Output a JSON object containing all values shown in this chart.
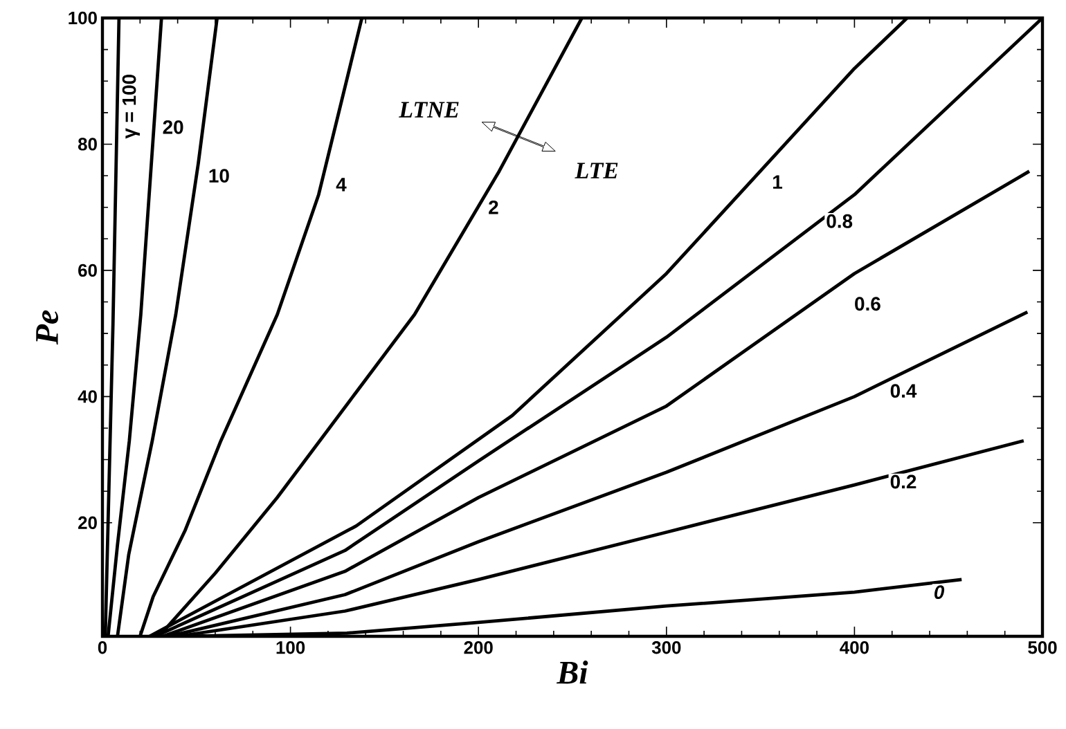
{
  "chart_data": {
    "type": "line",
    "xlabel": "*Bi*",
    "ylabel": "*Pe*",
    "xlim": [
      0,
      500
    ],
    "ylim": [
      2,
      100
    ],
    "xticks": [
      0,
      100,
      200,
      300,
      400,
      500
    ],
    "yticks": [
      20,
      40,
      60,
      80,
      100
    ],
    "grid": false,
    "marker": "none",
    "line_style": "solid",
    "series": [
      {
        "color": "#000000",
        "x": [
          1.5,
          3.2,
          5.6,
          8.8
        ],
        "values": [
          2,
          22.5,
          51.5,
          100
        ]
      },
      {
        "color": "#000000",
        "x": [
          3,
          8,
          14.3,
          20.4,
          26.5,
          31.4
        ],
        "values": [
          2,
          16.5,
          33,
          53,
          79,
          100
        ]
      },
      {
        "color": "#000000",
        "x": [
          8,
          14,
          26.5,
          39,
          51,
          61
        ],
        "values": [
          2,
          15,
          33,
          53,
          77,
          100
        ]
      },
      {
        "color": "#000000",
        "x": [
          20,
          27,
          44,
          63,
          93,
          115,
          138
        ],
        "values": [
          2,
          8.3,
          18.8,
          33,
          53,
          72,
          100
        ]
      },
      {
        "color": "#000000",
        "x": [
          30,
          60,
          93,
          135,
          166,
          211,
          255
        ],
        "values": [
          2,
          12,
          24,
          40.7,
          53,
          75.7,
          100
        ]
      },
      {
        "color": "#000000",
        "x": [
          25,
          135,
          218,
          300,
          400,
          428
        ],
        "values": [
          2,
          19.5,
          37,
          59.5,
          92,
          100
        ]
      },
      {
        "color": "#000000",
        "x": [
          28,
          129,
          200,
          300,
          400,
          500
        ],
        "values": [
          2,
          15.6,
          29.8,
          49.4,
          72,
          100
        ]
      },
      {
        "color": "#000000",
        "x": [
          32,
          129,
          200,
          300,
          400,
          493
        ],
        "values": [
          2,
          12.3,
          24,
          38.5,
          59.5,
          75.7
        ]
      },
      {
        "color": "#000000",
        "x": [
          35,
          129,
          200,
          300,
          400,
          492
        ],
        "values": [
          2,
          8.6,
          17,
          28,
          40,
          53.4
        ]
      },
      {
        "color": "#000000",
        "x": [
          40,
          129,
          200,
          300,
          400,
          490
        ],
        "values": [
          2,
          6,
          11,
          18.5,
          26,
          33
        ]
      },
      {
        "color": "#000000",
        "x": [
          45,
          130,
          200,
          300,
          400,
          457
        ],
        "values": [
          2,
          2.5,
          4.2,
          6.8,
          9,
          11
        ]
      }
    ],
    "annotations": [
      {
        "text": "γ = 100",
        "x": 8.2,
        "y": 86
      },
      {
        "text": "20",
        "x": 37.6,
        "y": 82.7
      },
      {
        "text": "10",
        "x": 62,
        "y": 75
      },
      {
        "text": "4",
        "x": 127,
        "y": 73.6
      },
      {
        "text": "2",
        "x": 208,
        "y": 70
      },
      {
        "text": "1",
        "x": 359,
        "y": 74
      },
      {
        "text": "0.8",
        "x": 392,
        "y": 67.8
      },
      {
        "text": "0.6",
        "x": 407,
        "y": 54.7
      },
      {
        "text": "0.4",
        "x": 426,
        "y": 40.9
      },
      {
        "text": "0.2",
        "x": 426,
        "y": 26.5
      },
      {
        "text": "*0*",
        "x": 445,
        "y": 9
      },
      {
        "text": "LTNE",
        "x": 221,
        "y": 81.3
      },
      {
        "text": "LTE",
        "x": 221,
        "y": 81.3
      }
    ]
  }
}
